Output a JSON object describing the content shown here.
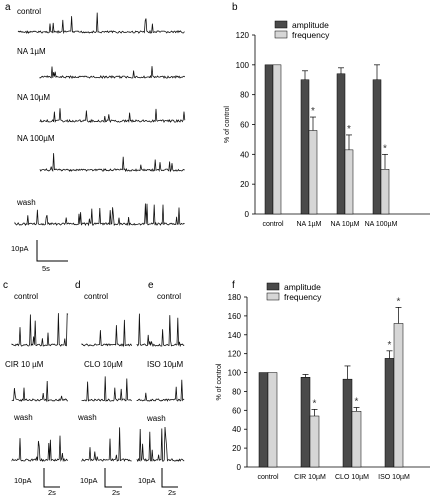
{
  "panel_labels": {
    "a": "a",
    "b": "b",
    "c": "c",
    "d": "d",
    "e": "e",
    "f": "f"
  },
  "traces_a": {
    "labels": [
      "control",
      "NA 1µM",
      "NA 10µM",
      "NA 100µM",
      "wash"
    ],
    "scalebar": {
      "y": "10pA",
      "x": "5s"
    }
  },
  "traces_c": {
    "labels": [
      "control",
      "CIR 10 µM",
      "wash"
    ],
    "scalebar": {
      "y": "10pA",
      "x": "2s"
    }
  },
  "traces_d": {
    "labels": [
      "control",
      "CLO 10µM",
      "wash"
    ],
    "scalebar": {
      "y": "10pA",
      "x": "2s"
    }
  },
  "traces_e": {
    "labels": [
      "control",
      "ISO 10µM",
      "wash"
    ],
    "scalebar": {
      "y": "10pA",
      "x": "2s"
    }
  },
  "colors": {
    "amplitude": "#4a4a4a",
    "frequency": "#d6d6d6",
    "trace": "#111111"
  },
  "chart_data": [
    {
      "panel": "b",
      "type": "bar",
      "categories": [
        "control",
        "NA 1µM",
        "NA 10µM",
        "NA 100µM"
      ],
      "ylabel": "% of control",
      "ylim": [
        0,
        120
      ],
      "yticks": [
        0,
        20,
        40,
        60,
        80,
        100,
        120
      ],
      "legend": "top-left",
      "series": [
        {
          "name": "amplitude",
          "values": [
            100,
            90,
            94,
            90
          ],
          "errors": [
            0,
            6,
            4,
            10
          ]
        },
        {
          "name": "frequency",
          "values": [
            100,
            56,
            43,
            30
          ],
          "errors": [
            0,
            9,
            10,
            10
          ]
        }
      ],
      "significance": [
        {
          "series": 1,
          "index": 1,
          "label": "*"
        },
        {
          "series": 1,
          "index": 2,
          "label": "*"
        },
        {
          "series": 1,
          "index": 3,
          "label": "*"
        }
      ]
    },
    {
      "panel": "f",
      "type": "bar",
      "categories": [
        "control",
        "CIR 10µM",
        "CLO 10µM",
        "ISO 10µM"
      ],
      "ylabel": "% of control",
      "ylim": [
        0,
        180
      ],
      "yticks": [
        0,
        20,
        40,
        60,
        80,
        100,
        120,
        140,
        160,
        180
      ],
      "legend": "top-left",
      "series": [
        {
          "name": "amplitude",
          "values": [
            100,
            95,
            93,
            115
          ],
          "errors": [
            0,
            3,
            14,
            8
          ]
        },
        {
          "name": "frequency",
          "values": [
            100,
            54,
            59,
            152
          ],
          "errors": [
            0,
            7,
            4,
            17
          ]
        }
      ],
      "significance": [
        {
          "series": 1,
          "index": 1,
          "label": "*"
        },
        {
          "series": 1,
          "index": 2,
          "label": "*"
        },
        {
          "series": 0,
          "index": 3,
          "label": "*"
        },
        {
          "series": 1,
          "index": 3,
          "label": "*"
        }
      ]
    }
  ]
}
